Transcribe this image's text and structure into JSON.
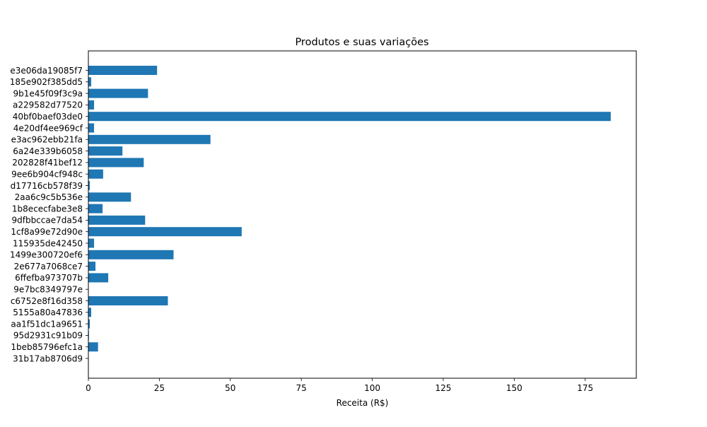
{
  "chart_data": {
    "type": "bar",
    "orientation": "horizontal",
    "title": "Produtos e suas variações",
    "xlabel": "Receita (R$)",
    "ylabel": "",
    "xlim": [
      0,
      193
    ],
    "x_ticks": [
      0,
      25,
      50,
      75,
      100,
      125,
      150,
      175
    ],
    "grid": false,
    "bar_color": "#1f77b4",
    "categories": [
      "31b17ab8706d9",
      "1beb85796efc1a",
      "95d2931c91b09",
      "aa1f51dc1a9651",
      "5155a80a47836",
      "c6752e8f16d358",
      "9e7bc8349797e",
      "6ffefba973707b",
      "2e677a7068ce7",
      "1499e300720ef6",
      "115935de42450",
      "1cf8a99e72d90e",
      "9dfbbccae7da54",
      "1b8ececfabe3e8",
      "2aa6c9c5b536e",
      "d17716cb578f39",
      "9ee6b904cf948c",
      "202828f41bef12",
      "6a24e339b6058",
      "e3ac962ebb21fa",
      "4e20df4ee969cf",
      "40bf0baef03de0",
      "a229582d77520",
      "9b1e45f09f3c9a",
      "185e902f385dd5",
      "e3e06da19085f7"
    ],
    "values": [
      0,
      3.4,
      0.2,
      0.5,
      1,
      28,
      0,
      7,
      2.5,
      30,
      2,
      54,
      20,
      5,
      15,
      0.5,
      5.2,
      19.5,
      12,
      43,
      2,
      184,
      2,
      21,
      1,
      24.2
    ]
  }
}
